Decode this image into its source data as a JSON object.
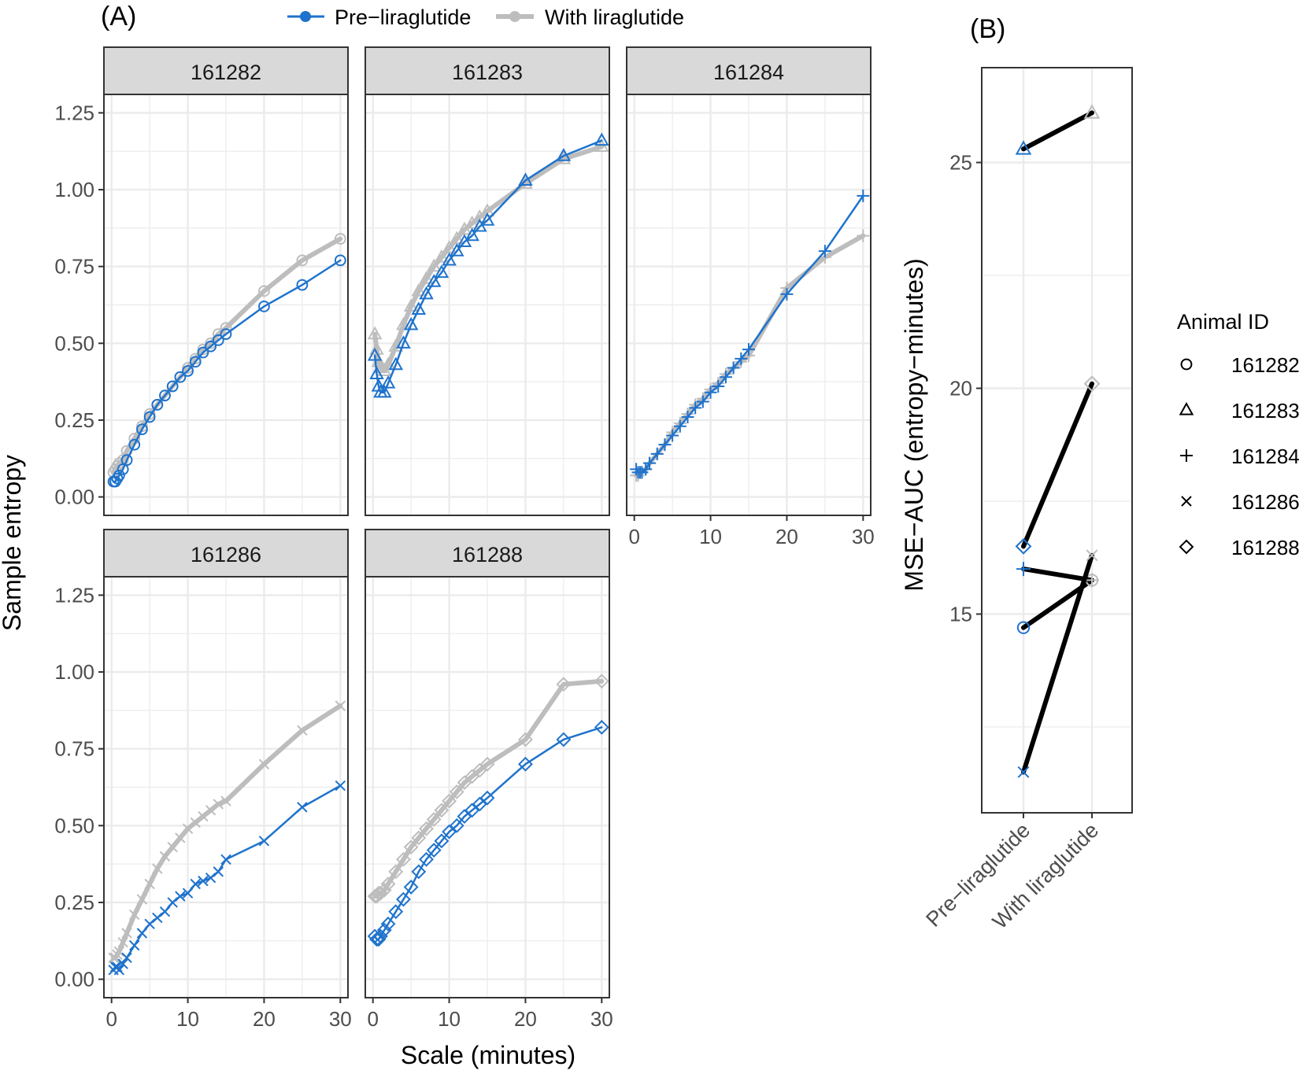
{
  "panel_labels": {
    "a": "(A)",
    "b": "(B)"
  },
  "legend_a": {
    "pre": "Pre−liraglutide",
    "with": "With liraglutide"
  },
  "legend_b": {
    "title": "Animal ID",
    "items": [
      {
        "id": "161282",
        "shape": "circle"
      },
      {
        "id": "161283",
        "shape": "triangle"
      },
      {
        "id": "161284",
        "shape": "plus"
      },
      {
        "id": "161286",
        "shape": "cross"
      },
      {
        "id": "161288",
        "shape": "diamond"
      }
    ]
  },
  "colors": {
    "pre": "#1f73cc",
    "with": "#bdbdbd",
    "auc_line": "#000000",
    "strip": "#d9d9d9",
    "grid": "#ebebeb"
  },
  "chart_data": [
    {
      "type": "line",
      "title": "",
      "xlabel": "Scale (minutes)",
      "ylabel": "Sample entropy",
      "xlim": [
        -1,
        31
      ],
      "ylim": [
        -0.06,
        1.31
      ],
      "xticks": [
        0,
        10,
        20,
        30
      ],
      "yticks": [
        0.0,
        0.25,
        0.5,
        0.75,
        1.0,
        1.25
      ],
      "ytick_labels": [
        "0.00",
        "0.25",
        "0.50",
        "0.75",
        "1.00",
        "1.25"
      ],
      "x": [
        0.25,
        0.5,
        0.75,
        1,
        1.5,
        2,
        3,
        4,
        5,
        6,
        7,
        8,
        9,
        10,
        11,
        12,
        13,
        14,
        15,
        20,
        25,
        30
      ],
      "facets": [
        {
          "id": "161282",
          "shape": "circle",
          "series": [
            {
              "name": "Pre−liraglutide",
              "values": [
                0.05,
                0.05,
                0.06,
                0.07,
                0.09,
                0.12,
                0.17,
                0.22,
                0.26,
                0.3,
                0.33,
                0.36,
                0.39,
                0.41,
                0.44,
                0.47,
                0.49,
                0.51,
                0.53,
                0.62,
                0.69,
                0.77
              ]
            },
            {
              "name": "With liraglutide",
              "values": [
                0.08,
                0.09,
                0.1,
                0.11,
                0.12,
                0.15,
                0.19,
                0.23,
                0.27,
                0.3,
                0.33,
                0.36,
                0.39,
                0.42,
                0.45,
                0.48,
                0.5,
                0.53,
                0.55,
                0.67,
                0.77,
                0.84
              ]
            }
          ]
        },
        {
          "id": "161283",
          "shape": "triangle",
          "series": [
            {
              "name": "Pre−liraglutide",
              "values": [
                0.46,
                0.4,
                0.36,
                0.34,
                0.34,
                0.37,
                0.43,
                0.5,
                0.56,
                0.61,
                0.66,
                0.7,
                0.73,
                0.77,
                0.8,
                0.83,
                0.85,
                0.88,
                0.9,
                1.03,
                1.11,
                1.16
              ]
            },
            {
              "name": "With liraglutide",
              "values": [
                0.53,
                0.48,
                0.44,
                0.42,
                0.41,
                0.43,
                0.49,
                0.56,
                0.62,
                0.67,
                0.71,
                0.75,
                0.78,
                0.81,
                0.84,
                0.87,
                0.89,
                0.91,
                0.93,
                1.02,
                1.1,
                1.14
              ]
            }
          ]
        },
        {
          "id": "161284",
          "shape": "plus",
          "series": [
            {
              "name": "Pre−liraglutide",
              "values": [
                0.09,
                0.08,
                0.08,
                0.08,
                0.09,
                0.11,
                0.14,
                0.17,
                0.2,
                0.23,
                0.26,
                0.29,
                0.31,
                0.34,
                0.36,
                0.39,
                0.42,
                0.45,
                0.48,
                0.66,
                0.8,
                0.98
              ]
            },
            {
              "name": "With liraglutide",
              "values": [
                0.07,
                0.07,
                0.08,
                0.08,
                0.09,
                0.11,
                0.14,
                0.17,
                0.21,
                0.24,
                0.27,
                0.3,
                0.32,
                0.35,
                0.37,
                0.4,
                0.42,
                0.44,
                0.46,
                0.68,
                0.78,
                0.85
              ]
            }
          ]
        },
        {
          "id": "161286",
          "shape": "cross",
          "series": [
            {
              "name": "Pre−liraglutide",
              "values": [
                0.03,
                0.04,
                0.04,
                0.03,
                0.05,
                0.07,
                0.11,
                0.15,
                0.18,
                0.2,
                0.22,
                0.25,
                0.27,
                0.28,
                0.31,
                0.32,
                0.33,
                0.35,
                0.39,
                0.45,
                0.56,
                0.63
              ]
            },
            {
              "name": "With liraglutide",
              "values": [
                0.07,
                0.07,
                0.08,
                0.09,
                0.12,
                0.15,
                0.21,
                0.26,
                0.31,
                0.36,
                0.4,
                0.43,
                0.46,
                0.49,
                0.51,
                0.53,
                0.55,
                0.57,
                0.58,
                0.7,
                0.81,
                0.89
              ]
            }
          ]
        },
        {
          "id": "161288",
          "shape": "diamond",
          "series": [
            {
              "name": "Pre−liraglutide",
              "values": [
                0.14,
                0.13,
                0.13,
                0.14,
                0.16,
                0.18,
                0.22,
                0.26,
                0.3,
                0.35,
                0.39,
                0.42,
                0.45,
                0.48,
                0.5,
                0.53,
                0.55,
                0.57,
                0.59,
                0.7,
                0.78,
                0.82
              ]
            },
            {
              "name": "With liraglutide",
              "values": [
                0.27,
                0.27,
                0.28,
                0.28,
                0.29,
                0.31,
                0.35,
                0.39,
                0.43,
                0.46,
                0.49,
                0.52,
                0.55,
                0.58,
                0.61,
                0.64,
                0.66,
                0.68,
                0.7,
                0.78,
                0.96,
                0.97
              ]
            }
          ]
        }
      ]
    },
    {
      "type": "line",
      "title": "",
      "xlabel": "",
      "ylabel": "MSE−AUC (entropy−minutes)",
      "categories": [
        "Pre−liraglutide",
        "With liraglutide"
      ],
      "ylim": [
        10.6,
        27.1
      ],
      "yticks": [
        15,
        20,
        25
      ],
      "minor_yticks": [
        12.5,
        17.5,
        22.5
      ],
      "series": [
        {
          "name": "161282",
          "shape": "circle",
          "values": [
            14.7,
            15.75
          ]
        },
        {
          "name": "161283",
          "shape": "triangle",
          "values": [
            25.3,
            26.1
          ]
        },
        {
          "name": "161284",
          "shape": "plus",
          "values": [
            16.0,
            15.75
          ]
        },
        {
          "name": "161286",
          "shape": "cross",
          "values": [
            11.5,
            16.3
          ]
        },
        {
          "name": "161288",
          "shape": "diamond",
          "values": [
            16.5,
            20.1
          ]
        }
      ]
    }
  ]
}
